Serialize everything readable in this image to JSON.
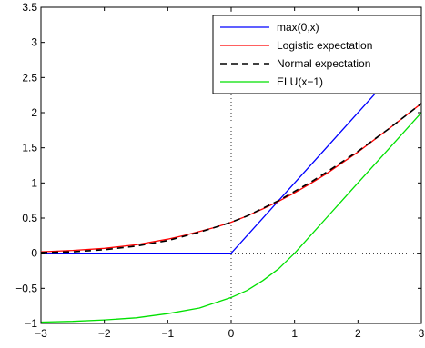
{
  "chart_data": {
    "type": "line",
    "xlim": [
      -3,
      3
    ],
    "ylim": [
      -1,
      3.5
    ],
    "x_ticks": [
      -3,
      -2,
      -1,
      0,
      1,
      2,
      3
    ],
    "y_ticks": [
      -1,
      -0.5,
      0,
      0.5,
      1,
      1.5,
      2,
      2.5,
      3,
      3.5
    ],
    "x_tick_labels": [
      "−3",
      "−2",
      "−1",
      "0",
      "1",
      "2",
      "3"
    ],
    "y_tick_labels": [
      "−1",
      "−0.5",
      "0",
      "0.5",
      "1",
      "1.5",
      "2",
      "2.5",
      "3",
      "3.5"
    ],
    "reference_lines": {
      "x0_vertical_dotted": true,
      "y0_horizontal_dotted_from_x": 0
    },
    "legend": {
      "placement": "top-right"
    },
    "series": [
      {
        "name": "max(0,x)",
        "color": "#0000ff",
        "style": "solid",
        "x": [
          -3,
          0,
          3
        ],
        "y": [
          0,
          0,
          3
        ]
      },
      {
        "name": "Logistic expectation",
        "color": "#ff0000",
        "style": "solid",
        "x": [
          -3,
          -2.5,
          -2,
          -1.5,
          -1,
          -0.75,
          -0.5,
          -0.25,
          0,
          0.25,
          0.5,
          0.75,
          1,
          1.25,
          1.5,
          2,
          2.5,
          3
        ],
        "y": [
          0.02,
          0.04,
          0.07,
          0.12,
          0.2,
          0.25,
          0.31,
          0.37,
          0.44,
          0.53,
          0.63,
          0.74,
          0.86,
          0.99,
          1.13,
          1.44,
          1.78,
          2.13
        ]
      },
      {
        "name": "Normal expectation",
        "color": "#000000",
        "style": "dashed",
        "x": [
          -3,
          -2.5,
          -2,
          -1.5,
          -1,
          -0.75,
          -0.5,
          -0.25,
          0,
          0.25,
          0.5,
          0.75,
          1,
          1.25,
          1.5,
          2,
          2.5,
          3
        ],
        "y": [
          0.01,
          0.02,
          0.05,
          0.1,
          0.18,
          0.24,
          0.3,
          0.37,
          0.44,
          0.53,
          0.64,
          0.75,
          0.88,
          1.01,
          1.15,
          1.45,
          1.78,
          2.13
        ]
      },
      {
        "name": "ELU(x−1)",
        "color": "#00e000",
        "style": "solid",
        "x": [
          -3,
          -2.5,
          -2,
          -1.5,
          -1,
          -0.5,
          0,
          0.25,
          0.5,
          0.75,
          1,
          1.5,
          2,
          2.5,
          3
        ],
        "y": [
          -0.98,
          -0.97,
          -0.95,
          -0.92,
          -0.86,
          -0.78,
          -0.63,
          -0.53,
          -0.39,
          -0.22,
          0,
          0.5,
          1,
          1.5,
          2
        ]
      }
    ]
  }
}
